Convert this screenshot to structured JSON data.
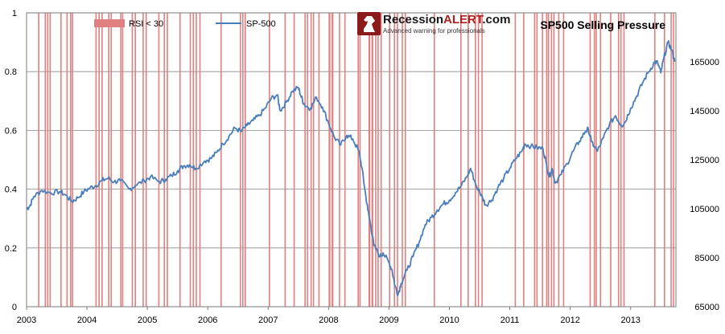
{
  "chart_data": {
    "type": "line",
    "title": "SP500 Selling Pressure",
    "brand": {
      "name_prefix": "Recession",
      "name_highlight": "ALERT",
      "name_suffix": ".com",
      "tagline": "Advanced warning for professionals"
    },
    "legend": [
      {
        "name": "RSI < 30",
        "kind": "bar",
        "color": "#e08080"
      },
      {
        "name": "SP-500",
        "kind": "line",
        "color": "#4a7ebb"
      }
    ],
    "legend_position": "top",
    "grid": true,
    "x_range": [
      2003.0,
      2013.75
    ],
    "x_ticks": [
      "2003",
      "2004",
      "2005",
      "2006",
      "2007",
      "2008",
      "2009",
      "2010",
      "2011",
      "2012",
      "2013"
    ],
    "y_left": {
      "range": [
        0,
        1
      ],
      "ticks": [
        "0",
        "0.2",
        "0.4",
        "0.6",
        "0.8",
        "1"
      ]
    },
    "y_right": {
      "range": [
        65000,
        185000
      ],
      "ticks": [
        "65000",
        "85000",
        "105000",
        "125000",
        "145000",
        "165000"
      ]
    },
    "series": [
      {
        "name": "SP-500",
        "axis": "right",
        "color": "#4a7ebb",
        "points": [
          [
            2003.0,
            105000
          ],
          [
            2003.05,
            106000
          ],
          [
            2003.12,
            110000
          ],
          [
            2003.25,
            112500
          ],
          [
            2003.4,
            111500
          ],
          [
            2003.55,
            112000
          ],
          [
            2003.65,
            110500
          ],
          [
            2003.75,
            108000
          ],
          [
            2003.85,
            109500
          ],
          [
            2003.95,
            112000
          ],
          [
            2004.05,
            113500
          ],
          [
            2004.15,
            114500
          ],
          [
            2004.25,
            116500
          ],
          [
            2004.35,
            117500
          ],
          [
            2004.45,
            116000
          ],
          [
            2004.55,
            116500
          ],
          [
            2004.7,
            113000
          ],
          [
            2004.8,
            114500
          ],
          [
            2004.95,
            116500
          ],
          [
            2005.05,
            118000
          ],
          [
            2005.2,
            116000
          ],
          [
            2005.3,
            117000
          ],
          [
            2005.4,
            118500
          ],
          [
            2005.5,
            120500
          ],
          [
            2005.6,
            122500
          ],
          [
            2005.7,
            123000
          ],
          [
            2005.8,
            121500
          ],
          [
            2005.95,
            124500
          ],
          [
            2006.05,
            125500
          ],
          [
            2006.15,
            128000
          ],
          [
            2006.25,
            131500
          ],
          [
            2006.35,
            134500
          ],
          [
            2006.45,
            138000
          ],
          [
            2006.55,
            136500
          ],
          [
            2006.65,
            139000
          ],
          [
            2006.75,
            141000
          ],
          [
            2006.85,
            143000
          ],
          [
            2006.95,
            146000
          ],
          [
            2007.05,
            150000
          ],
          [
            2007.15,
            151500
          ],
          [
            2007.2,
            145000
          ],
          [
            2007.3,
            148500
          ],
          [
            2007.4,
            153000
          ],
          [
            2007.5,
            154500
          ],
          [
            2007.55,
            150500
          ],
          [
            2007.6,
            147500
          ],
          [
            2007.7,
            146000
          ],
          [
            2007.8,
            150500
          ],
          [
            2007.9,
            146500
          ],
          [
            2008.0,
            140000
          ],
          [
            2008.1,
            134000
          ],
          [
            2008.2,
            131000
          ],
          [
            2008.3,
            135000
          ],
          [
            2008.4,
            133500
          ],
          [
            2008.5,
            128500
          ],
          [
            2008.55,
            122000
          ],
          [
            2008.6,
            113000
          ],
          [
            2008.65,
            104500
          ],
          [
            2008.7,
            98000
          ],
          [
            2008.75,
            90000
          ],
          [
            2008.85,
            85500
          ],
          [
            2008.9,
            87000
          ],
          [
            2009.0,
            83000
          ],
          [
            2009.05,
            80000
          ],
          [
            2009.1,
            73500
          ],
          [
            2009.15,
            70000
          ],
          [
            2009.2,
            74500
          ],
          [
            2009.3,
            80000
          ],
          [
            2009.4,
            85500
          ],
          [
            2009.5,
            91500
          ],
          [
            2009.6,
            98500
          ],
          [
            2009.7,
            101500
          ],
          [
            2009.8,
            104500
          ],
          [
            2009.9,
            107000
          ],
          [
            2010.0,
            108500
          ],
          [
            2010.1,
            111500
          ],
          [
            2010.2,
            114500
          ],
          [
            2010.3,
            118500
          ],
          [
            2010.35,
            121500
          ],
          [
            2010.45,
            114000
          ],
          [
            2010.55,
            109500
          ],
          [
            2010.6,
            106500
          ],
          [
            2010.7,
            108500
          ],
          [
            2010.8,
            113500
          ],
          [
            2010.9,
            117500
          ],
          [
            2011.0,
            121500
          ],
          [
            2011.1,
            125500
          ],
          [
            2011.2,
            128500
          ],
          [
            2011.25,
            131500
          ],
          [
            2011.35,
            130500
          ],
          [
            2011.45,
            130000
          ],
          [
            2011.55,
            129500
          ],
          [
            2011.6,
            124000
          ],
          [
            2011.65,
            118000
          ],
          [
            2011.7,
            121500
          ],
          [
            2011.75,
            115500
          ],
          [
            2011.85,
            119000
          ],
          [
            2011.95,
            123500
          ],
          [
            2012.05,
            128500
          ],
          [
            2012.15,
            132500
          ],
          [
            2012.25,
            136500
          ],
          [
            2012.3,
            137500
          ],
          [
            2012.35,
            132500
          ],
          [
            2012.45,
            128500
          ],
          [
            2012.55,
            134000
          ],
          [
            2012.65,
            139500
          ],
          [
            2012.75,
            143000
          ],
          [
            2012.85,
            139000
          ],
          [
            2012.9,
            140000
          ],
          [
            2013.0,
            146000
          ],
          [
            2013.1,
            151000
          ],
          [
            2013.2,
            156500
          ],
          [
            2013.3,
            161000
          ],
          [
            2013.4,
            165000
          ],
          [
            2013.45,
            164500
          ],
          [
            2013.5,
            160500
          ],
          [
            2013.55,
            166500
          ],
          [
            2013.62,
            173000
          ],
          [
            2013.68,
            170000
          ],
          [
            2013.73,
            165000
          ]
        ]
      }
    ],
    "rsi_below_30_periods": [
      [
        2003.19,
        2003.2
      ],
      [
        2003.3,
        2003.31
      ],
      [
        2003.34,
        2003.35
      ],
      [
        2003.38,
        2003.39
      ],
      [
        2003.56,
        2003.58
      ],
      [
        2003.66,
        2003.67
      ],
      [
        2003.72,
        2003.73
      ],
      [
        2003.75,
        2003.76
      ],
      [
        2004.14,
        2004.15
      ],
      [
        2004.19,
        2004.2
      ],
      [
        2004.24,
        2004.25
      ],
      [
        2004.35,
        2004.36
      ],
      [
        2004.39,
        2004.4
      ],
      [
        2004.55,
        2004.56
      ],
      [
        2004.58,
        2004.59
      ],
      [
        2004.74,
        2004.75
      ],
      [
        2004.79,
        2004.8
      ],
      [
        2004.92,
        2004.93
      ],
      [
        2004.97,
        2004.98
      ],
      [
        2005.18,
        2005.19
      ],
      [
        2005.27,
        2005.28
      ],
      [
        2005.32,
        2005.33
      ],
      [
        2005.53,
        2005.54
      ],
      [
        2005.7,
        2005.71
      ],
      [
        2005.75,
        2005.77
      ],
      [
        2005.8,
        2005.81
      ],
      [
        2005.86,
        2005.87
      ],
      [
        2006.21,
        2006.22
      ],
      [
        2006.53,
        2006.55
      ],
      [
        2006.57,
        2006.58
      ],
      [
        2006.61,
        2006.62
      ],
      [
        2007.01,
        2007.02
      ],
      [
        2007.27,
        2007.28
      ],
      [
        2007.42,
        2007.43
      ],
      [
        2007.6,
        2007.62
      ],
      [
        2007.64,
        2007.65
      ],
      [
        2007.7,
        2007.71
      ],
      [
        2007.74,
        2007.76
      ],
      [
        2007.83,
        2007.84
      ],
      [
        2008.0,
        2008.03
      ],
      [
        2008.05,
        2008.08
      ],
      [
        2008.17,
        2008.18
      ],
      [
        2008.26,
        2008.27
      ],
      [
        2008.48,
        2008.49
      ],
      [
        2008.51,
        2008.53
      ],
      [
        2008.66,
        2008.69
      ],
      [
        2008.71,
        2008.74
      ],
      [
        2008.77,
        2008.78
      ],
      [
        2008.81,
        2008.83
      ],
      [
        2008.86,
        2008.87
      ],
      [
        2009.0,
        2009.01
      ],
      [
        2009.08,
        2009.1
      ],
      [
        2009.13,
        2009.15
      ],
      [
        2009.21,
        2009.22
      ],
      [
        2009.26,
        2009.27
      ],
      [
        2009.74,
        2009.76
      ],
      [
        2010.18,
        2010.19
      ],
      [
        2010.3,
        2010.31
      ],
      [
        2010.42,
        2010.43
      ],
      [
        2010.47,
        2010.48
      ],
      [
        2010.53,
        2010.54
      ],
      [
        2011.08,
        2011.09
      ],
      [
        2011.22,
        2011.23
      ],
      [
        2011.4,
        2011.41
      ],
      [
        2011.44,
        2011.45
      ],
      [
        2011.53,
        2011.55
      ],
      [
        2011.6,
        2011.62
      ],
      [
        2011.63,
        2011.65
      ],
      [
        2011.68,
        2011.69
      ],
      [
        2011.72,
        2011.74
      ],
      [
        2011.8,
        2011.81
      ],
      [
        2011.88,
        2011.89
      ],
      [
        2012.32,
        2012.33
      ],
      [
        2012.39,
        2012.4
      ],
      [
        2012.42,
        2012.43
      ],
      [
        2012.49,
        2012.5
      ],
      [
        2012.66,
        2012.67
      ],
      [
        2012.79,
        2012.8
      ],
      [
        2012.83,
        2012.84
      ],
      [
        2012.88,
        2012.89
      ],
      [
        2013.39,
        2013.4
      ],
      [
        2013.55,
        2013.56
      ],
      [
        2013.66,
        2013.68
      ],
      [
        2013.7,
        2013.71
      ]
    ],
    "colors": {
      "rsi_bars": "#e08080",
      "line": "#4a7ebb",
      "grid": "#8a8a8a",
      "frame": "#7a7a7a",
      "brand_red": "#b02020",
      "brand_badge": "#8b1a1a"
    }
  }
}
